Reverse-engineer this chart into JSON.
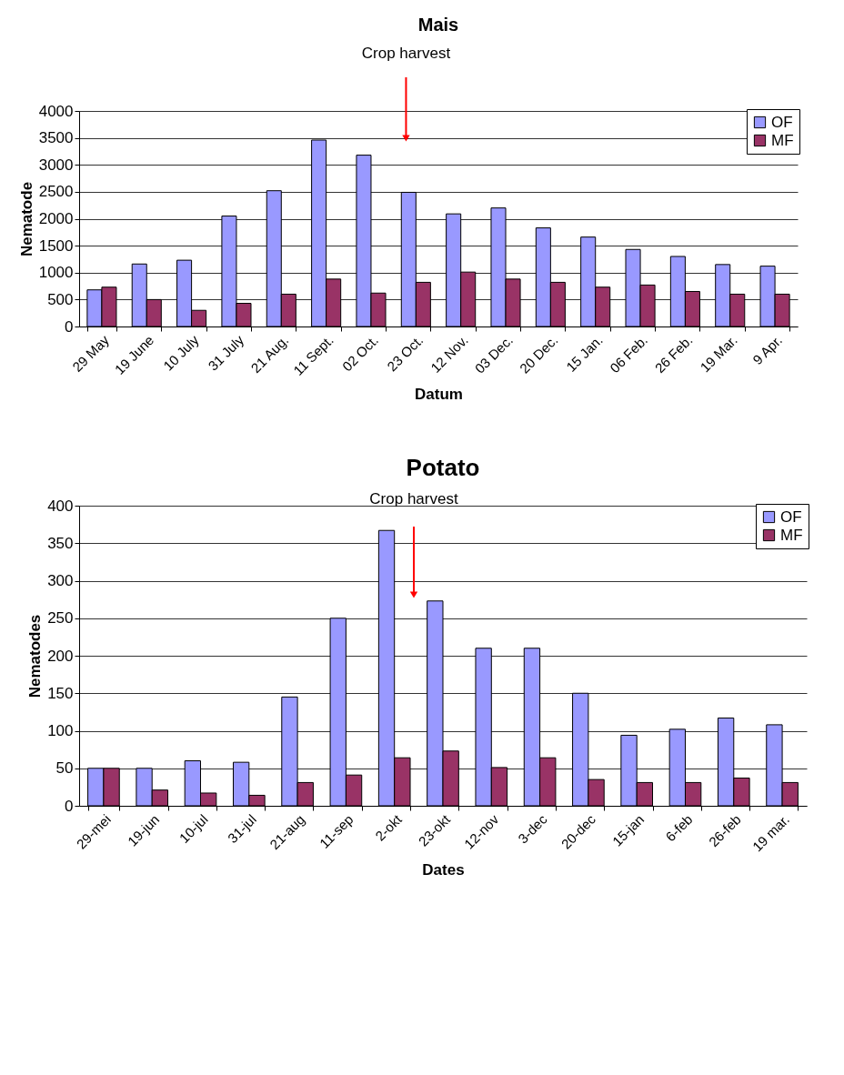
{
  "chart_data": [
    {
      "type": "bar",
      "title": "Mais",
      "xlabel": "Datum",
      "ylabel": "Nematode",
      "categories": [
        "29 May",
        "19 June",
        "10 July",
        "31 July",
        "21 Aug.",
        "11 Sept.",
        "02 Oct.",
        "23 Oct.",
        "12 Nov.",
        "03 Dec.",
        "20 Dec.",
        "15 Jan.",
        "06 Feb.",
        "26 Feb.",
        "19 Mar.",
        "9 Apr."
      ],
      "series": [
        {
          "name": "OF",
          "color": "#9999ff",
          "values": [
            680,
            1160,
            1230,
            2050,
            2520,
            3460,
            3180,
            2490,
            2090,
            2200,
            1830,
            1660,
            1430,
            1300,
            1150,
            1120
          ]
        },
        {
          "name": "MF",
          "color": "#993366",
          "values": [
            730,
            500,
            300,
            430,
            600,
            880,
            620,
            820,
            1010,
            880,
            820,
            730,
            770,
            650,
            600,
            600
          ]
        }
      ],
      "ylim": [
        0,
        4000
      ],
      "yticks": [
        0,
        500,
        1000,
        1500,
        2000,
        2500,
        3000,
        3500,
        4000
      ],
      "grid": "y",
      "legend": "top right",
      "annotations": [
        "Crop harvest"
      ]
    },
    {
      "type": "bar",
      "title": "Potato",
      "xlabel": "Dates",
      "ylabel": "Nematodes",
      "categories": [
        "29-mei",
        "19-jun",
        "10-jul",
        "31-jul",
        "21-aug",
        "11-sep",
        "2-okt",
        "23-okt",
        "12-nov",
        "3-dec",
        "20-dec",
        "15-jan",
        "6-feb",
        "26-feb",
        "19 mar."
      ],
      "series": [
        {
          "name": "OF",
          "color": "#9999ff",
          "values": [
            50,
            50,
            60,
            58,
            145,
            250,
            367,
            273,
            210,
            210,
            150,
            94,
            102,
            117,
            108
          ]
        },
        {
          "name": "MF",
          "color": "#993366",
          "values": [
            50,
            21,
            17,
            14,
            31,
            41,
            64,
            73,
            51,
            64,
            35,
            31,
            31,
            37,
            31
          ]
        }
      ],
      "ylim": [
        0,
        400
      ],
      "yticks": [
        0,
        50,
        100,
        150,
        200,
        250,
        300,
        350,
        400
      ],
      "grid": "y",
      "legend": "top right",
      "annotations": [
        "Crop harvest"
      ]
    }
  ]
}
